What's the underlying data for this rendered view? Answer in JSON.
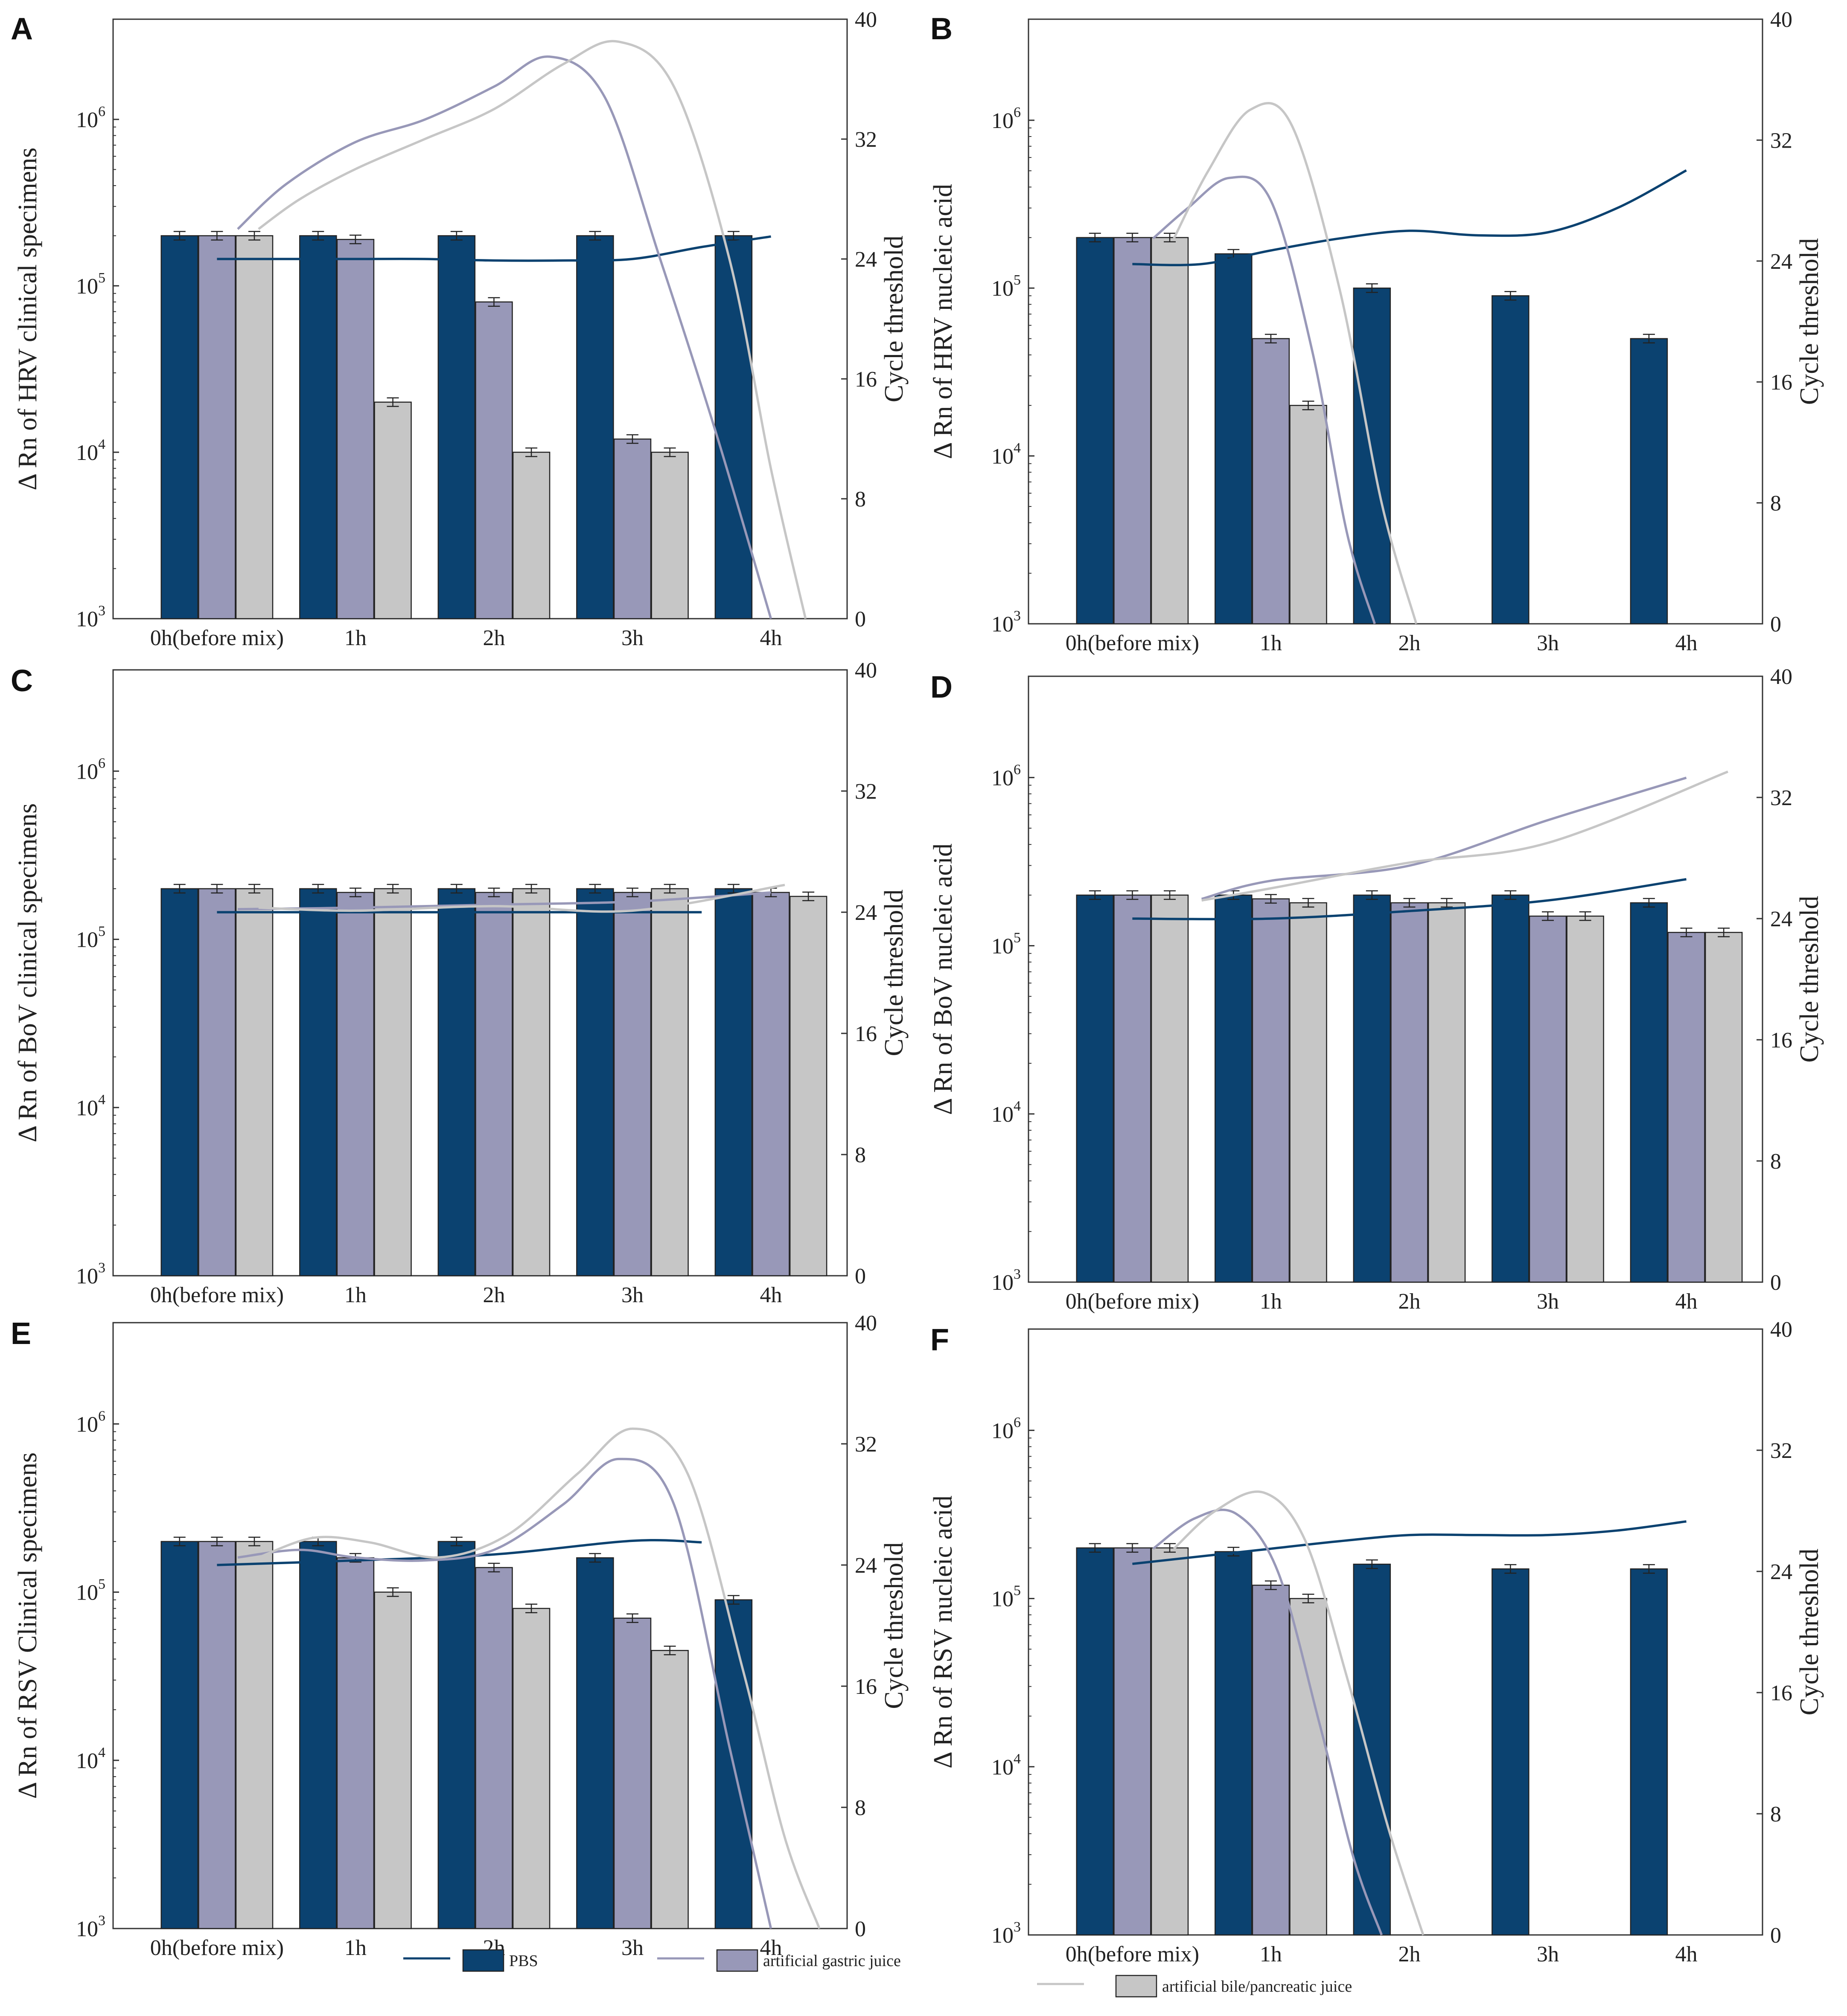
{
  "figure": {
    "colors": {
      "pbs": "#0b4270",
      "gastric": "#9898b8",
      "bile": "#c6c6c6",
      "axis": "#333333"
    },
    "legend": {
      "entries": [
        {
          "key": "pbs",
          "label": "PBS"
        },
        {
          "key": "gastric",
          "label": "artificial gastric juice"
        },
        {
          "key": "bile",
          "label": "artificial bile/pancreatic juice"
        }
      ]
    }
  },
  "chart_data": [
    {
      "panel": "A",
      "type": "bar",
      "ylabel": "Δ Rn of HRV clinical specimens",
      "y2label": "Cycle  threshold",
      "categories": [
        "0h(before mix)",
        "1h",
        "2h",
        "3h",
        "4h"
      ],
      "ylim": [
        1000,
        4000000
      ],
      "yscale": "log",
      "y2lim": [
        0,
        40
      ],
      "y2ticks": [
        0,
        8,
        16,
        24,
        32,
        40
      ],
      "series": [
        {
          "name": "PBS",
          "values": [
            200000,
            200000,
            200000,
            200000,
            200000
          ]
        },
        {
          "name": "artificial gastric juice",
          "values": [
            200000,
            190000,
            80000,
            12000,
            null
          ]
        },
        {
          "name": "artificial bile/pancreatic juice",
          "values": [
            200000,
            20000,
            10000,
            10000,
            null
          ]
        }
      ],
      "ct_lines": [
        {
          "name": "PBS",
          "x": [
            0,
            0.5,
            1,
            1.5,
            2,
            2.5,
            3,
            3.5,
            4
          ],
          "values": [
            24,
            24,
            24,
            24,
            23.9,
            23.9,
            24,
            24.8,
            25.5
          ]
        },
        {
          "name": "artificial gastric juice",
          "x": [
            0.15,
            0.5,
            1,
            1.5,
            2,
            2.4,
            2.8,
            3.2,
            3.6,
            4.0
          ],
          "values": [
            26,
            29,
            31.8,
            33.3,
            35.5,
            37.5,
            34.8,
            24,
            12.5,
            0
          ]
        },
        {
          "name": "artificial bile/pancreatic juice",
          "x": [
            0.3,
            0.6,
            1,
            1.5,
            2,
            2.5,
            2.9,
            3.3,
            3.7,
            4.0,
            4.25
          ],
          "values": [
            26,
            28,
            30,
            32,
            34,
            37,
            38.5,
            35.5,
            24,
            10,
            0
          ]
        }
      ]
    },
    {
      "panel": "B",
      "type": "bar",
      "ylabel": "Δ Rn of HRV nucleic acid",
      "y2label": "Cycle threshold",
      "categories": [
        "0h(before mix)",
        "1h",
        "2h",
        "3h",
        "4h"
      ],
      "ylim": [
        1000,
        4000000
      ],
      "yscale": "log",
      "y2lim": [
        0,
        40
      ],
      "y2ticks": [
        0,
        8,
        16,
        24,
        32,
        40
      ],
      "series": [
        {
          "name": "PBS",
          "values": [
            200000,
            160000,
            100000,
            90000,
            50000
          ]
        },
        {
          "name": "artificial gastric juice",
          "values": [
            200000,
            50000,
            null,
            null,
            null
          ]
        },
        {
          "name": "artificial bile/pancreatic juice",
          "values": [
            200000,
            20000,
            null,
            null,
            null
          ]
        }
      ],
      "ct_lines": [
        {
          "name": "PBS",
          "x": [
            0,
            0.5,
            1,
            1.5,
            2,
            2.5,
            3,
            3.5,
            4
          ],
          "values": [
            23.8,
            23.8,
            24.7,
            25.5,
            26,
            25.7,
            25.9,
            27.5,
            30
          ]
        },
        {
          "name": "artificial gastric juice",
          "x": [
            0.15,
            0.4,
            0.7,
            1.0,
            1.3,
            1.55,
            1.75
          ],
          "values": [
            25.5,
            27.5,
            29.5,
            28,
            18,
            6,
            0
          ]
        },
        {
          "name": "artificial bile/pancreatic juice",
          "x": [
            0.3,
            0.55,
            0.85,
            1.15,
            1.5,
            1.8,
            2.05
          ],
          "values": [
            25.5,
            30,
            34,
            33,
            22,
            8,
            0
          ]
        }
      ]
    },
    {
      "panel": "C",
      "type": "bar",
      "ylabel": "Δ Rn of BoV clinical specimens",
      "y2label": "Cycle  threshold",
      "categories": [
        "0h(before mix)",
        "1h",
        "2h",
        "3h",
        "4h"
      ],
      "ylim": [
        1000,
        4000000
      ],
      "yscale": "log",
      "y2lim": [
        0,
        40
      ],
      "y2ticks": [
        0,
        8,
        16,
        24,
        32,
        40
      ],
      "series": [
        {
          "name": "PBS",
          "values": [
            200000,
            200000,
            200000,
            200000,
            200000
          ]
        },
        {
          "name": "artificial gastric juice",
          "values": [
            200000,
            190000,
            190000,
            190000,
            190000
          ]
        },
        {
          "name": "artificial bile/pancreatic juice",
          "values": [
            200000,
            200000,
            200000,
            200000,
            180000
          ]
        }
      ],
      "ct_lines": [
        {
          "name": "PBS",
          "x": [
            0,
            1,
            2,
            3,
            3.5
          ],
          "values": [
            24,
            24,
            24,
            24,
            24
          ]
        },
        {
          "name": "artificial gastric juice",
          "x": [
            0.15,
            1,
            2,
            3,
            4
          ],
          "values": [
            24.2,
            24.3,
            24.5,
            24.7,
            25.3
          ]
        },
        {
          "name": "artificial bile/pancreatic juice",
          "x": [
            0.3,
            1,
            2,
            3,
            4.1
          ],
          "values": [
            24.3,
            24.1,
            24.4,
            24.1,
            25.8
          ]
        }
      ]
    },
    {
      "panel": "D",
      "type": "bar",
      "ylabel": "Δ Rn of BoV nucleic acid",
      "y2label": "Cycle threshold",
      "categories": [
        "0h(before mix)",
        "1h",
        "2h",
        "3h",
        "4h"
      ],
      "ylim": [
        1000,
        4000000
      ],
      "yscale": "log",
      "y2lim": [
        0,
        40
      ],
      "y2ticks": [
        0,
        8,
        16,
        24,
        32,
        40
      ],
      "series": [
        {
          "name": "PBS",
          "values": [
            200000,
            200000,
            200000,
            200000,
            180000
          ]
        },
        {
          "name": "artificial gastric juice",
          "values": [
            200000,
            190000,
            180000,
            150000,
            120000
          ]
        },
        {
          "name": "artificial bile/pancreatic juice",
          "values": [
            200000,
            180000,
            180000,
            150000,
            120000
          ]
        }
      ],
      "ct_lines": [
        {
          "name": "PBS",
          "x": [
            0,
            1,
            2,
            3,
            4
          ],
          "values": [
            24,
            24,
            24.5,
            25.2,
            26.6
          ]
        },
        {
          "name": "artificial gastric juice",
          "x": [
            0.5,
            1,
            2,
            3,
            4
          ],
          "values": [
            25.3,
            26.5,
            27.5,
            30.5,
            33.3
          ]
        },
        {
          "name": "artificial bile/pancreatic juice",
          "x": [
            0.5,
            1,
            2,
            3,
            4.3
          ],
          "values": [
            25.2,
            26,
            27.7,
            29,
            33.7
          ]
        }
      ]
    },
    {
      "panel": "E",
      "type": "bar",
      "ylabel": "Δ Rn of RSV Clinical specimens",
      "y2label": "Cycle threshold",
      "categories": [
        "0h(before mix)",
        "1h",
        "2h",
        "3h",
        "4h"
      ],
      "ylim": [
        1000,
        4000000
      ],
      "yscale": "log",
      "y2lim": [
        0,
        40
      ],
      "y2ticks": [
        0,
        8,
        16,
        24,
        32,
        40
      ],
      "series": [
        {
          "name": "PBS",
          "values": [
            200000,
            200000,
            200000,
            160000,
            90000
          ]
        },
        {
          "name": "artificial gastric juice",
          "values": [
            200000,
            160000,
            140000,
            70000,
            null
          ]
        },
        {
          "name": "artificial bile/pancreatic juice",
          "values": [
            200000,
            100000,
            80000,
            45000,
            null
          ]
        }
      ],
      "ct_lines": [
        {
          "name": "PBS",
          "x": [
            0,
            1,
            2,
            3,
            3.5
          ],
          "values": [
            24,
            24.3,
            24.7,
            25.6,
            25.5
          ]
        },
        {
          "name": "artificial gastric juice",
          "x": [
            0.15,
            0.6,
            1.0,
            1.5,
            2.0,
            2.5,
            2.9,
            3.3,
            3.7,
            4.0
          ],
          "values": [
            24.5,
            25,
            24.5,
            24.3,
            25,
            28,
            31,
            28,
            12,
            0
          ]
        },
        {
          "name": "artificial bile/pancreatic juice",
          "x": [
            0.3,
            0.7,
            1.1,
            1.6,
            2.1,
            2.6,
            3.0,
            3.4,
            3.8,
            4.1,
            4.35
          ],
          "values": [
            24.5,
            25.8,
            25.5,
            24.5,
            26,
            30,
            33,
            30,
            17,
            6,
            0
          ]
        }
      ]
    },
    {
      "panel": "F",
      "type": "bar",
      "ylabel": "Δ Rn of RSV nucleic acid",
      "y2label": "Cycle threshold",
      "categories": [
        "0h(before mix)",
        "1h",
        "2h",
        "3h",
        "4h"
      ],
      "ylim": [
        1000,
        4000000
      ],
      "yscale": "log",
      "y2lim": [
        0,
        40
      ],
      "y2ticks": [
        0,
        8,
        16,
        24,
        32,
        40
      ],
      "series": [
        {
          "name": "PBS",
          "values": [
            200000,
            190000,
            160000,
            150000,
            150000
          ]
        },
        {
          "name": "artificial gastric juice",
          "values": [
            200000,
            120000,
            null,
            null,
            null
          ]
        },
        {
          "name": "artificial bile/pancreatic juice",
          "values": [
            200000,
            100000,
            null,
            null,
            null
          ]
        }
      ],
      "ct_lines": [
        {
          "name": "PBS",
          "x": [
            0,
            0.5,
            1,
            1.5,
            2,
            2.5,
            3,
            3.5,
            4
          ],
          "values": [
            24.5,
            25,
            25.5,
            26,
            26.4,
            26.4,
            26.4,
            26.7,
            27.3
          ]
        },
        {
          "name": "artificial gastric juice",
          "x": [
            0.15,
            0.45,
            0.75,
            1.05,
            1.35,
            1.6,
            1.8
          ],
          "values": [
            25.5,
            27.5,
            27.8,
            24,
            14,
            5,
            0
          ]
        },
        {
          "name": "artificial bile/pancreatic juice",
          "x": [
            0.3,
            0.6,
            0.95,
            1.25,
            1.55,
            1.85,
            2.1
          ],
          "values": [
            25.5,
            28,
            29.2,
            26,
            17,
            7,
            0
          ]
        }
      ]
    }
  ]
}
